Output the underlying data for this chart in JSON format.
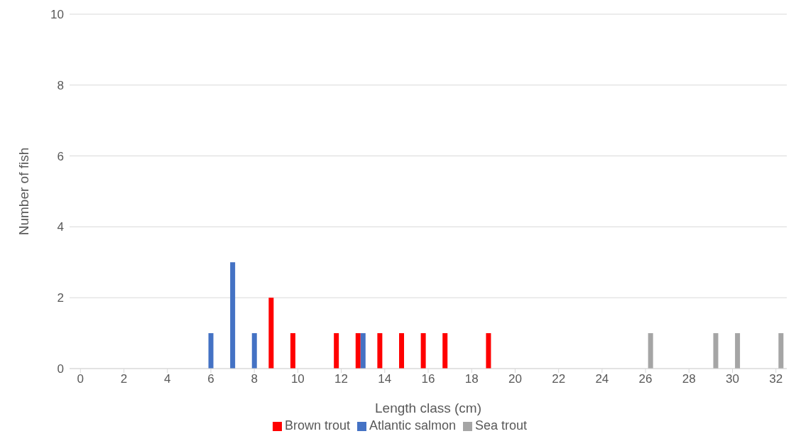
{
  "chart_data": {
    "type": "bar",
    "xlabel": "Length class (cm)",
    "ylabel": "Number of fish",
    "x": [
      0,
      1,
      2,
      3,
      4,
      5,
      6,
      7,
      8,
      9,
      10,
      11,
      12,
      13,
      14,
      15,
      16,
      17,
      18,
      19,
      20,
      21,
      22,
      23,
      24,
      25,
      26,
      27,
      28,
      29,
      30,
      31,
      32
    ],
    "xlim": [
      -0.5,
      32.5
    ],
    "xticks": [
      0,
      2,
      4,
      6,
      8,
      10,
      12,
      14,
      16,
      18,
      20,
      22,
      24,
      26,
      28,
      30,
      32
    ],
    "series": [
      {
        "name": "Brown trout",
        "color": "#ff0000",
        "values": [
          0,
          0,
          0,
          0,
          0,
          0,
          0,
          0,
          0,
          2,
          1,
          0,
          1,
          1,
          1,
          1,
          1,
          1,
          0,
          1,
          0,
          0,
          0,
          0,
          0,
          0,
          0,
          0,
          0,
          0,
          0,
          0,
          0
        ]
      },
      {
        "name": "Atlantic salmon",
        "color": "#4472c4",
        "values": [
          0,
          0,
          0,
          0,
          0,
          0,
          1,
          3,
          1,
          0,
          0,
          0,
          0,
          1,
          0,
          0,
          0,
          0,
          0,
          0,
          0,
          0,
          0,
          0,
          0,
          0,
          0,
          0,
          0,
          0,
          0,
          0,
          0
        ]
      },
      {
        "name": "Sea trout",
        "color": "#a5a5a5",
        "values": [
          0,
          0,
          0,
          0,
          0,
          0,
          0,
          0,
          0,
          0,
          0,
          0,
          0,
          0,
          0,
          0,
          0,
          0,
          0,
          0,
          0,
          0,
          0,
          0,
          0,
          0,
          1,
          0,
          0,
          1,
          1,
          0,
          1
        ]
      }
    ],
    "ylim": [
      0,
      10
    ],
    "yticks": [
      0,
      2,
      4,
      6,
      8,
      10
    ],
    "grid": "y",
    "legend": "bottom"
  }
}
